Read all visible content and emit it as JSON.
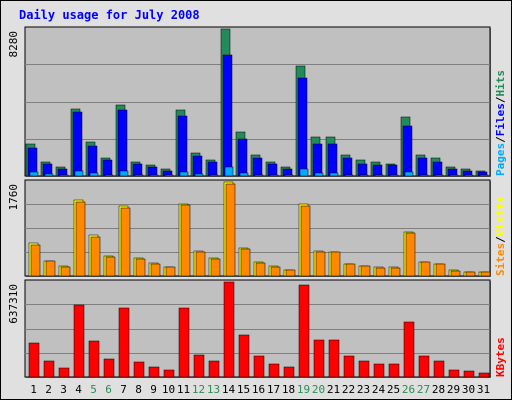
{
  "colors": {
    "background": "#e0e0e0",
    "panel": "#c0c0c0",
    "title": "#0000ff",
    "hits": "#228b5a",
    "files": "#0000ff",
    "pages": "#00aaff",
    "visits": "#ffff00",
    "sites": "#ff8800",
    "kbytes": "#ff0000",
    "weekend_label": "#2e8b57"
  },
  "chart_data": {
    "type": "bar",
    "title": "Daily usage for July 2008",
    "categories": [
      "1",
      "2",
      "3",
      "4",
      "5",
      "6",
      "7",
      "8",
      "9",
      "10",
      "11",
      "12",
      "13",
      "14",
      "15",
      "16",
      "17",
      "18",
      "19",
      "20",
      "21",
      "22",
      "23",
      "24",
      "25",
      "26",
      "27",
      "28",
      "29",
      "30",
      "31"
    ],
    "weekend_days": [
      "5",
      "6",
      "12",
      "13",
      "19",
      "20",
      "26",
      "27"
    ],
    "panels": [
      {
        "max_label": "8280",
        "ylim": [
          0,
          8280
        ],
        "legend": [
          {
            "key": "pages",
            "label": "Pages"
          },
          {
            "key": "files",
            "label": "Files"
          },
          {
            "key": "hits",
            "label": "Hits"
          }
        ],
        "series": [
          {
            "name": "Hits",
            "key": "hits",
            "values": [
              1800,
              800,
              500,
              3800,
              1900,
              1000,
              4000,
              800,
              600,
              400,
              3700,
              1300,
              900,
              8280,
              2500,
              1200,
              800,
              500,
              6200,
              2200,
              2200,
              1200,
              900,
              800,
              700,
              3300,
              1200,
              1000,
              500,
              400,
              300
            ]
          },
          {
            "name": "Files",
            "key": "files",
            "values": [
              1600,
              700,
              400,
              3600,
              1700,
              900,
              3700,
              700,
              500,
              300,
              3400,
              1100,
              800,
              6800,
              2100,
              1000,
              700,
              400,
              5500,
              1800,
              1800,
              1000,
              700,
              600,
              600,
              2800,
              1000,
              800,
              400,
              300,
              200
            ]
          },
          {
            "name": "Pages",
            "key": "pages",
            "values": [
              200,
              100,
              50,
              300,
              150,
              80,
              300,
              60,
              40,
              30,
              250,
              100,
              70,
              500,
              150,
              70,
              60,
              40,
              400,
              150,
              150,
              80,
              60,
              50,
              50,
              200,
              80,
              60,
              30,
              20,
              20
            ]
          }
        ]
      },
      {
        "max_label": "1760",
        "ylim": [
          0,
          1760
        ],
        "legend": [
          {
            "key": "sites",
            "label": "Sites"
          },
          {
            "key": "visits",
            "label": "Visits"
          }
        ],
        "series": [
          {
            "name": "Visits",
            "key": "visits",
            "values": [
              610,
              290,
              180,
              1420,
              760,
              380,
              1310,
              340,
              240,
              170,
              1350,
              470,
              330,
              1760,
              530,
              260,
              180,
              120,
              1350,
              460,
              450,
              230,
              190,
              160,
              160,
              830,
              270,
              230,
              110,
              80,
              80
            ]
          },
          {
            "name": "Sites",
            "key": "sites",
            "values": [
              580,
              280,
              170,
              1390,
              730,
              360,
              1270,
              320,
              230,
              160,
              1320,
              450,
              310,
              1720,
              510,
              250,
              170,
              110,
              1310,
              440,
              440,
              220,
              180,
              150,
              150,
              810,
              260,
              220,
              100,
              70,
              70
            ]
          }
        ]
      },
      {
        "max_label": "637310",
        "ylim": [
          0,
          637310
        ],
        "legend": [
          {
            "key": "kbytes",
            "label": "KBytes"
          }
        ],
        "series": [
          {
            "name": "KBytes",
            "key": "kbytes",
            "values": [
              230000,
              110000,
              60000,
              480000,
              240000,
              120000,
              460000,
              100000,
              70000,
              50000,
              460000,
              150000,
              110000,
              637310,
              280000,
              140000,
              90000,
              70000,
              620000,
              250000,
              250000,
              140000,
              110000,
              90000,
              90000,
              370000,
              140000,
              110000,
              50000,
              40000,
              30000
            ]
          }
        ]
      }
    ]
  }
}
